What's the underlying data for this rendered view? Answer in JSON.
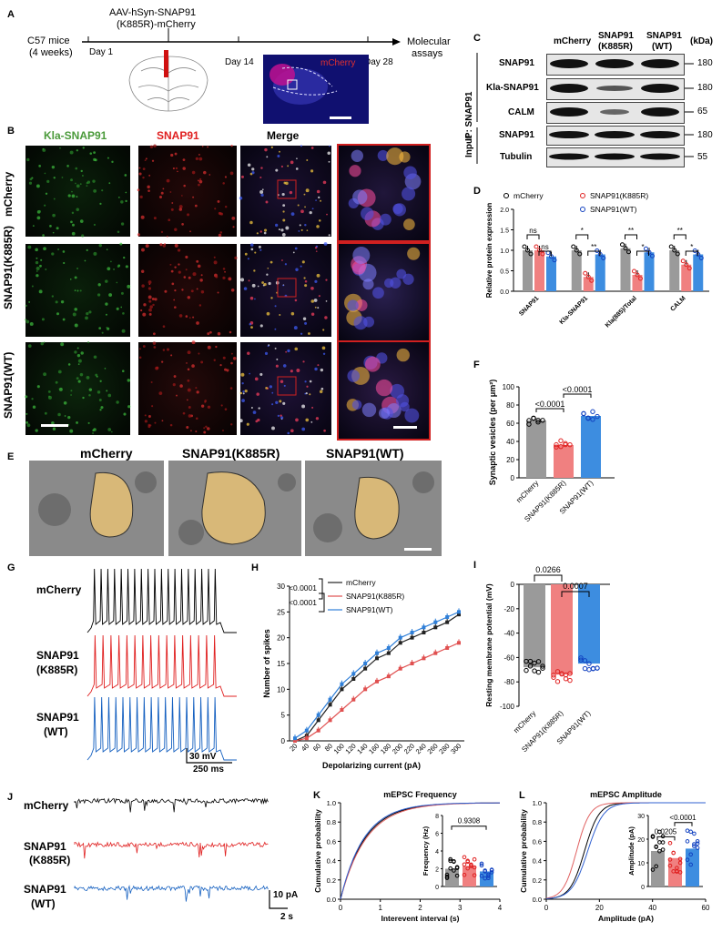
{
  "panels": {
    "A": "A",
    "B": "B",
    "C": "C",
    "D": "D",
    "E": "E",
    "F": "F",
    "G": "G",
    "H": "H",
    "I": "I",
    "J": "J",
    "K": "K",
    "L": "L"
  },
  "panelA": {
    "mice": "C57 mice",
    "age": "(4 weeks)",
    "virus_line1": "AAV-hSyn-SNAP91",
    "virus_line2": "(K885R)-mCherry",
    "day1": "Day 1",
    "day14": "Day 14",
    "day28": "Day 28",
    "end1": "Molecular",
    "end2": "assays",
    "mcherry_label": "mCherry"
  },
  "panelB": {
    "col_kla": "Kla-SNAP91",
    "col_snap": "SNAP91",
    "col_merge": "Merge",
    "rows": [
      "mCherry",
      "SNAP91(K885R)",
      "SNAP91(WT)"
    ]
  },
  "panelC": {
    "col_mcherry": "mCherry",
    "col_k885r_1": "SNAP91",
    "col_k885r_2": "(K885R)",
    "col_wt_1": "SNAP91",
    "col_wt_2": "(WT)",
    "kda": "(kDa)",
    "ip_label": "IP: SNAP91",
    "input_label": "Input",
    "bands": [
      {
        "name": "SNAP91",
        "size": "180"
      },
      {
        "name": "Kla-SNAP91",
        "size": "180"
      },
      {
        "name": "CALM",
        "size": "65"
      },
      {
        "name": "SNAP91",
        "size": "180"
      },
      {
        "name": "Tubulin",
        "size": "55"
      }
    ]
  },
  "panelE": {
    "labels": [
      "mCherry",
      "SNAP91(K885R)",
      "SNAP91(WT)"
    ]
  },
  "panelG": {
    "rows": [
      {
        "l1": "mCherry",
        "l2": ""
      },
      {
        "l1": "SNAP91",
        "l2": "(K885R)"
      },
      {
        "l1": "SNAP91",
        "l2": "(WT)"
      }
    ],
    "scale_v": "30 mV",
    "scale_t": "250 ms"
  },
  "panelJ": {
    "rows": [
      {
        "l1": "mCherry",
        "l2": ""
      },
      {
        "l1": "SNAP91",
        "l2": "(K885R)"
      },
      {
        "l1": "SNAP91",
        "l2": "(WT)"
      }
    ],
    "scale_a": "10 pA",
    "scale_t": "2 s"
  },
  "colors": {
    "mcherry": "#9a9a9a",
    "k885r": "#f08080",
    "wt": "#3d8de0",
    "trace_black": "#000000",
    "trace_red": "#e02020",
    "trace_blue": "#1560c0"
  },
  "chart_data": [
    {
      "id": "D",
      "type": "bar",
      "ylabel": "Relative protein expression",
      "categories": [
        "SNAP91",
        "Kla-SNAP91",
        "Kla(885)/Total",
        "CALM"
      ],
      "series": [
        {
          "name": "mCherry",
          "values": [
            1.0,
            1.0,
            1.05,
            1.0
          ]
        },
        {
          "name": "SNAP91(K885R)",
          "values": [
            1.0,
            0.35,
            0.4,
            0.65
          ]
        },
        {
          "name": "SNAP91(WT)",
          "values": [
            0.85,
            0.9,
            0.95,
            0.9
          ]
        }
      ],
      "ylim": [
        0,
        2
      ],
      "annotations": [
        "ns",
        "ns",
        "*",
        "**",
        "**",
        "*",
        "**",
        "*"
      ]
    },
    {
      "id": "F",
      "type": "bar",
      "ylabel": "Synaptic vesicles (per μm²)",
      "categories": [
        "mCherry",
        "SNAP91(K885R)",
        "SNAP91(WT)"
      ],
      "values": [
        63,
        36,
        68
      ],
      "ylim": [
        0,
        100
      ],
      "yticks": [
        "0",
        "20",
        "40",
        "60",
        "80",
        "100"
      ],
      "pvalues": [
        "<0.0001",
        "<0.0001"
      ]
    },
    {
      "id": "H",
      "type": "line",
      "xlabel": "Depolarizing current (pA)",
      "ylabel": "Number of spikes",
      "x": [
        20,
        40,
        60,
        80,
        100,
        120,
        140,
        160,
        180,
        200,
        220,
        240,
        260,
        280,
        300
      ],
      "series": [
        {
          "name": "mCherry",
          "values": [
            0,
            1,
            4,
            7,
            10,
            12,
            14,
            16,
            17,
            19,
            20,
            21,
            22,
            23,
            24.5
          ]
        },
        {
          "name": "SNAP91(K885R)",
          "values": [
            0,
            0.5,
            2,
            4,
            6,
            8,
            10,
            11.5,
            12.5,
            14,
            15,
            16,
            17,
            18,
            19
          ]
        },
        {
          "name": "SNAP91(WT)",
          "values": [
            0.5,
            2,
            5,
            8,
            11,
            13,
            15,
            17,
            18,
            20,
            21,
            22,
            23,
            24,
            25
          ]
        }
      ],
      "ylim": [
        0,
        30
      ],
      "xticks": [
        "20",
        "40",
        "60",
        "80",
        "100",
        "120",
        "140",
        "160",
        "180",
        "200",
        "220",
        "240",
        "260",
        "280",
        "300"
      ],
      "yticks": [
        "0",
        "5",
        "10",
        "15",
        "20",
        "25",
        "30"
      ],
      "pvalues": [
        "<0.0001",
        "<0.0001"
      ]
    },
    {
      "id": "I",
      "type": "bar",
      "ylabel": "Resting membrane potential (mV)",
      "categories": [
        "mCherry",
        "SNAP91(K885R)",
        "SNAP91(WT)"
      ],
      "values": [
        -68,
        -74,
        -65
      ],
      "ylim": [
        -100,
        0
      ],
      "yticks": [
        "0",
        "-20",
        "-40",
        "-60",
        "-80",
        "-100"
      ],
      "pvalues": [
        "0.0266",
        "0.0007"
      ]
    },
    {
      "id": "K",
      "type": "line",
      "title": "mEPSC Frequency",
      "xlabel": "Interevent interval (s)",
      "ylabel": "Cumulative probability",
      "xticks": [
        "0",
        "1",
        "2",
        "3",
        "4"
      ],
      "yticks": [
        "0.0",
        "0.2",
        "0.4",
        "0.6",
        "0.8",
        "1.0"
      ],
      "inset": {
        "ylabel": "Frequency (Hz)",
        "values": [
          2.0,
          2.3,
          1.7
        ],
        "ylim": [
          0,
          8
        ],
        "yticks": [
          "0",
          "2",
          "4",
          "6",
          "8"
        ],
        "pvalue": "0.9308"
      }
    },
    {
      "id": "L",
      "type": "line",
      "title": "mEPSC Amplitude",
      "xlabel": "Amplitude (pA)",
      "ylabel": "Cumulative probability",
      "xticks": [
        "0",
        "20",
        "40",
        "60"
      ],
      "yticks": [
        "0.0",
        "0.2",
        "0.4",
        "0.6",
        "0.8",
        "1.0"
      ],
      "inset": {
        "ylabel": "Amplitude (pA)",
        "values": [
          15,
          12,
          16
        ],
        "ylim": [
          0,
          30
        ],
        "yticks": [
          "0",
          "10",
          "20",
          "30"
        ],
        "pvalues": [
          "0.0205",
          "<0.0001"
        ]
      }
    }
  ]
}
